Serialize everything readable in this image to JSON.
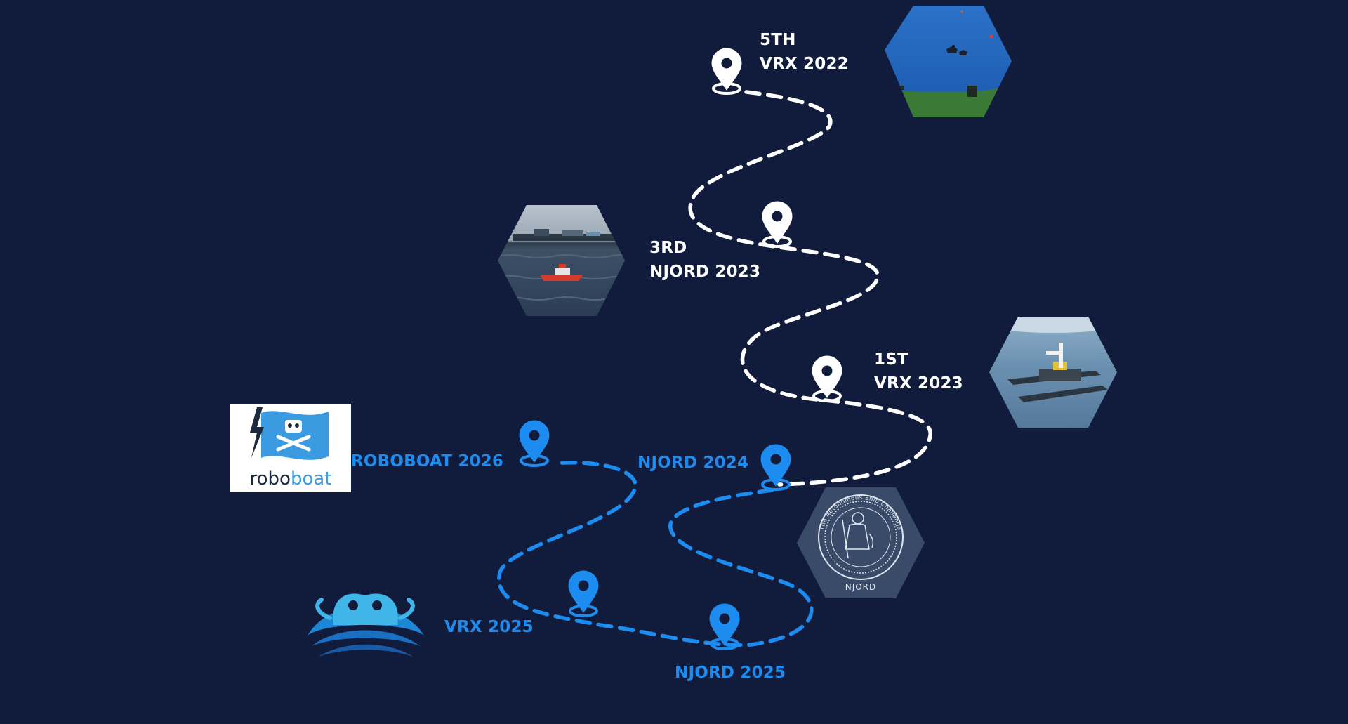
{
  "colors": {
    "background": "#111c3c",
    "past_route": "#ffffff",
    "future_route": "#1d8cf0",
    "future_label": "#1d8cf0"
  },
  "milestones": [
    {
      "placement": "5TH",
      "event": "VRX 2022",
      "status": "completed",
      "image": "simulated-lake-with-boats-hexagon"
    },
    {
      "placement": "3RD",
      "event": "NJORD 2023",
      "status": "completed",
      "image": "red-boat-in-harbor-hexagon"
    },
    {
      "placement": "1ST",
      "event": "VRX 2023",
      "status": "completed",
      "image": "catamaran-drone-rendering-hexagon"
    },
    {
      "placement": "",
      "event": "NJORD 2024",
      "status": "upcoming",
      "image": "njord-autonomous-ship-challenge-seal"
    },
    {
      "placement": "",
      "event": "NJORD 2025",
      "status": "upcoming"
    },
    {
      "placement": "",
      "event": "VRX 2025",
      "status": "upcoming",
      "image": "vrx-crab-wave-logo"
    },
    {
      "placement": "",
      "event": "ROBOBOAT 2026",
      "status": "upcoming",
      "image": "roboboat-pirate-flag-logo"
    }
  ],
  "logos": {
    "roboboat_wordmark_a": "robo",
    "roboboat_wordmark_b": "boat",
    "njord_seal_top": "The Autonomous Ship Challenge",
    "njord_seal_bottom": "NJORD"
  }
}
